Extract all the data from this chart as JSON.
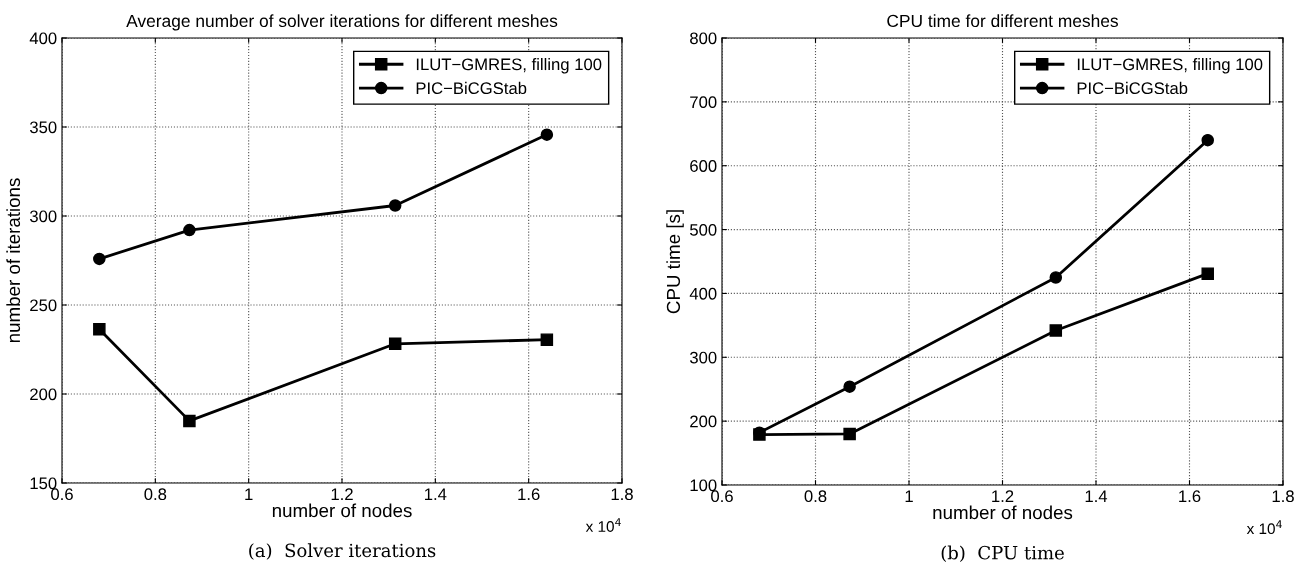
{
  "chart_data": [
    {
      "type": "line",
      "title": "Average number of solver iterations for different meshes",
      "xlabel": "number of nodes",
      "ylabel": "number of iterations",
      "x": [
        0.68,
        0.873,
        1.314,
        1.639
      ],
      "series": [
        {
          "name": "ILUT−GMRES, filling 100",
          "color": "#000000",
          "marker": "square",
          "values": [
            236.4,
            184.9,
            228.2,
            230.5
          ]
        },
        {
          "name": "PIC−BiCGStab",
          "color": "#000000",
          "marker": "circle",
          "values": [
            275.9,
            292.1,
            305.9,
            345.7
          ]
        }
      ],
      "xlim": [
        0.6,
        1.8
      ],
      "xticks": [
        0.6,
        0.8,
        1,
        1.2,
        1.4,
        1.6,
        1.8
      ],
      "ylim": [
        150,
        400
      ],
      "yticks": [
        150,
        200,
        250,
        300,
        350,
        400
      ],
      "grid": true,
      "legend": "top right",
      "line_style": "solid",
      "annotations": [
        "x 10$^{4}$",
        "(a)  Solver iterations"
      ]
    },
    {
      "type": "line",
      "title": "CPU time for different meshes",
      "xlabel": "number of nodes",
      "ylabel": "CPU time [s]",
      "x": [
        0.68,
        0.873,
        1.314,
        1.639
      ],
      "series": [
        {
          "name": "ILUT−GMRES, filling 100",
          "color": "#000000",
          "marker": "square",
          "values": [
            179,
            180,
            342,
            431
          ]
        },
        {
          "name": "PIC−BiCGStab",
          "color": "#000000",
          "marker": "circle",
          "values": [
            182,
            254,
            425,
            640
          ]
        }
      ],
      "xlim": [
        0.6,
        1.8
      ],
      "xticks": [
        0.6,
        0.8,
        1,
        1.2,
        1.4,
        1.6,
        1.8
      ],
      "ylim": [
        100,
        800
      ],
      "yticks": [
        100,
        200,
        300,
        400,
        500,
        600,
        700,
        800
      ],
      "grid": true,
      "legend": "top right",
      "line_style": "solid",
      "annotations": [
        "x 10$^{4}$",
        "(b)  CPU time"
      ]
    }
  ]
}
